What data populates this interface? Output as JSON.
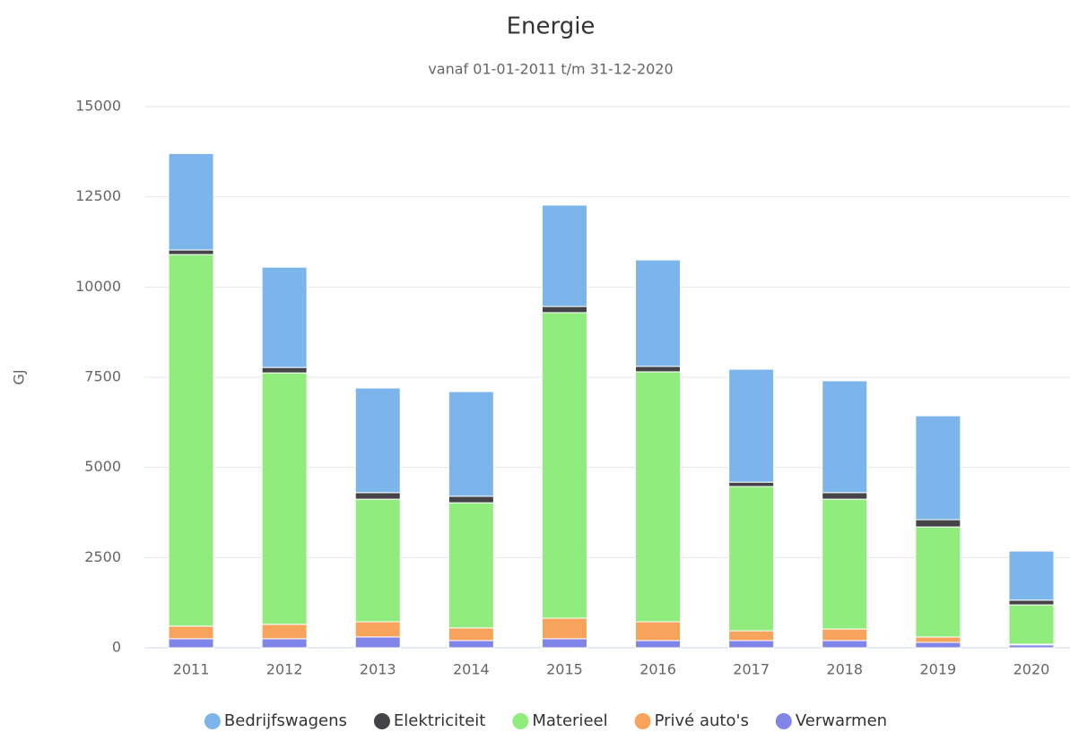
{
  "chart_data": {
    "type": "bar",
    "stacked": true,
    "title": "Energie",
    "subtitle": "vanaf 01-01-2011 t/m 31-12-2020",
    "y_label": "GJ",
    "categories": [
      "2011",
      "2012",
      "2013",
      "2014",
      "2015",
      "2016",
      "2017",
      "2018",
      "2019",
      "2020"
    ],
    "series": [
      {
        "name": "Verwarmen",
        "color": "#8085e9",
        "values": [
          250,
          250,
          300,
          200,
          250,
          200,
          200,
          200,
          150,
          80
        ]
      },
      {
        "name": "Privé auto's",
        "color": "#f7a35c",
        "values": [
          350,
          400,
          420,
          350,
          570,
          520,
          270,
          320,
          150,
          20
        ]
      },
      {
        "name": "Materieel",
        "color": "#90ed7d",
        "values": [
          10300,
          6970,
          3400,
          3470,
          8470,
          6930,
          4000,
          3600,
          3050,
          1090
        ]
      },
      {
        "name": "Elektriciteit",
        "color": "#434348",
        "values": [
          125,
          150,
          180,
          180,
          170,
          150,
          120,
          180,
          200,
          130
        ]
      },
      {
        "name": "Bedrijfswagens",
        "color": "#7cb5ec",
        "values": [
          2675,
          2780,
          2900,
          2900,
          2810,
          2950,
          3130,
          3100,
          2880,
          1360
        ]
      }
    ],
    "legend_order": [
      4,
      3,
      2,
      1,
      0
    ],
    "ylim": [
      0,
      15000
    ],
    "yticks": [
      0,
      2500,
      5000,
      7500,
      10000,
      12500,
      15000
    ],
    "grid": true,
    "legend": "bottom"
  }
}
